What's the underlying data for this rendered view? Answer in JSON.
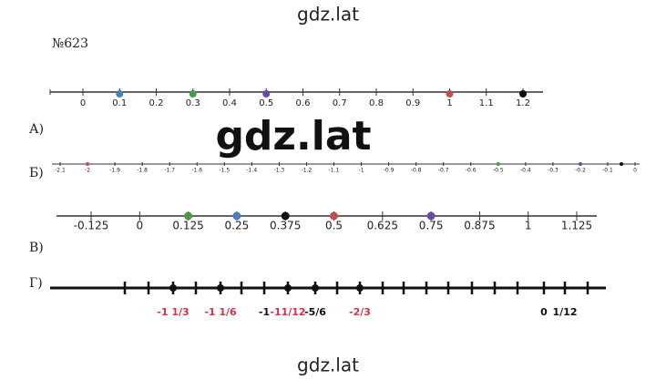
{
  "watermark_top": "gdz.lat",
  "watermark_middle": "gdz.lat",
  "watermark_bottom": "gdz.lat",
  "problem_number": "№623",
  "parts": [
    {
      "letter": "А)",
      "labels": [
        "0",
        "0.1",
        "0.2",
        "0.3",
        "0.4",
        "0.5",
        "0.6",
        "0.7",
        "0.8",
        "0.9",
        "1",
        "1.1",
        "1.2"
      ]
    },
    {
      "letter": "Б)",
      "labels": [
        "-2.1",
        "-2",
        "-1.9",
        "-1.8",
        "-1.7",
        "-1.6",
        "-1.5",
        "-1.4",
        "-1.3",
        "-1.2",
        "-1.1",
        "-1",
        "-0.9",
        "-0.8",
        "-0.7",
        "-0.6",
        "-0.5",
        "-0.4",
        "-0.3",
        "-0.2",
        "-0.1",
        "0"
      ]
    },
    {
      "letter": "В)",
      "labels": [
        "-0.125",
        "0",
        "0.125",
        "0.25",
        "0.375",
        "0.5",
        "0.625",
        "0.75",
        "0.875",
        "1",
        "1.125"
      ]
    },
    {
      "letter": "Г)",
      "labels": [
        "-1 1/3",
        "-1 1/6",
        "-1",
        "-11/12",
        "-5/6",
        "-2/3",
        "0",
        "1/12"
      ]
    }
  ]
}
